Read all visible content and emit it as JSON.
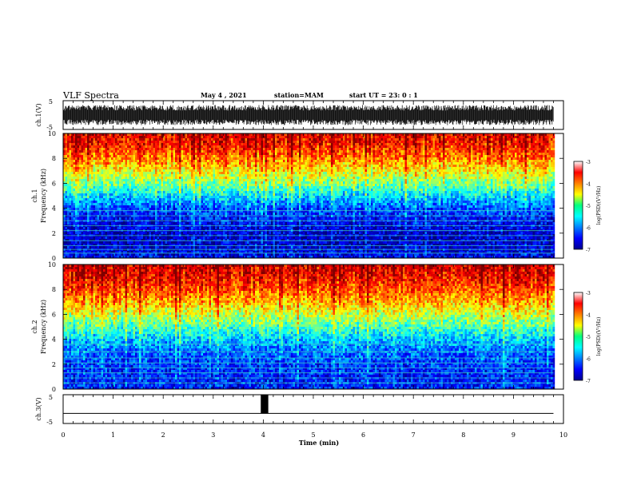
{
  "header": {
    "title": "VLF Spectra",
    "date": "May 4 , 2021",
    "station": "station=MAM",
    "start": "start UT = 23: 0 : 1"
  },
  "chart_data": [
    {
      "type": "line",
      "panel": "ch1-waveform",
      "ylabel": "ch.1(V)",
      "ylim": [
        -5,
        5
      ],
      "yticks": [
        "5",
        "-5"
      ],
      "xlim": [
        0,
        10
      ],
      "trace_range": [
        -3.5,
        3.5
      ],
      "color": "#000000"
    },
    {
      "type": "heatmap",
      "panel": "ch1-spectrogram",
      "ylabel": "ch.1\nFrequency (kHz)",
      "ylim": [
        0,
        10
      ],
      "yticks": [
        "0",
        "2",
        "4",
        "6",
        "8",
        "10"
      ],
      "xlim": [
        0,
        9.8
      ],
      "colorbar": {
        "label": "log(PSD)(V²/Hz)",
        "ticks": [
          "-3",
          "-4",
          "-5",
          "-6",
          "-7"
        ],
        "range": [
          -7,
          -3
        ]
      },
      "profile_khz": [
        0,
        1,
        2,
        3,
        4,
        5,
        6,
        7,
        8,
        9,
        10
      ],
      "profile_logpsd": [
        -6.5,
        -6.7,
        -6.7,
        -6.5,
        -6.2,
        -5.6,
        -5.0,
        -4.5,
        -4.0,
        -3.6,
        -3.4
      ],
      "hlines_khz": [
        0.4,
        0.7,
        1.0,
        1.4,
        1.8,
        2.2,
        2.6,
        3.0,
        3.4,
        3.8
      ]
    },
    {
      "type": "heatmap",
      "panel": "ch2-spectrogram",
      "ylabel": "ch.2\nFrequency (kHz)",
      "ylim": [
        0,
        10
      ],
      "yticks": [
        "0",
        "2",
        "4",
        "6",
        "8",
        "10"
      ],
      "xlim": [
        0,
        9.8
      ],
      "colorbar": {
        "label": "log(PSD)(V²/Hz)",
        "ticks": [
          "-3",
          "-4",
          "-5",
          "-6",
          "-7"
        ],
        "range": [
          -7,
          -3
        ]
      },
      "profile_khz": [
        0,
        1,
        2,
        3,
        4,
        5,
        6,
        7,
        8,
        9,
        10
      ],
      "profile_logpsd": [
        -6.4,
        -6.4,
        -6.3,
        -6.1,
        -5.7,
        -5.2,
        -4.7,
        -4.2,
        -3.8,
        -3.5,
        -3.3
      ],
      "hlines_khz": [
        0.5,
        0.9,
        1.3,
        1.7,
        2.1,
        2.5,
        3.0,
        3.6
      ]
    },
    {
      "type": "line",
      "panel": "ch3-waveform",
      "ylabel": "ch.3(V)",
      "ylim": [
        -5,
        5
      ],
      "yticks": [
        "5",
        "-5"
      ],
      "xlim": [
        0,
        10
      ],
      "baseline_v": -1.5,
      "pulse": {
        "t_start": 3.95,
        "t_end": 4.1,
        "v_low": -1.5,
        "v_high": 5
      },
      "xlabel": "Time (min)",
      "xticks": [
        "0",
        "1",
        "2",
        "3",
        "4",
        "5",
        "6",
        "7",
        "8",
        "9",
        "10"
      ]
    }
  ]
}
